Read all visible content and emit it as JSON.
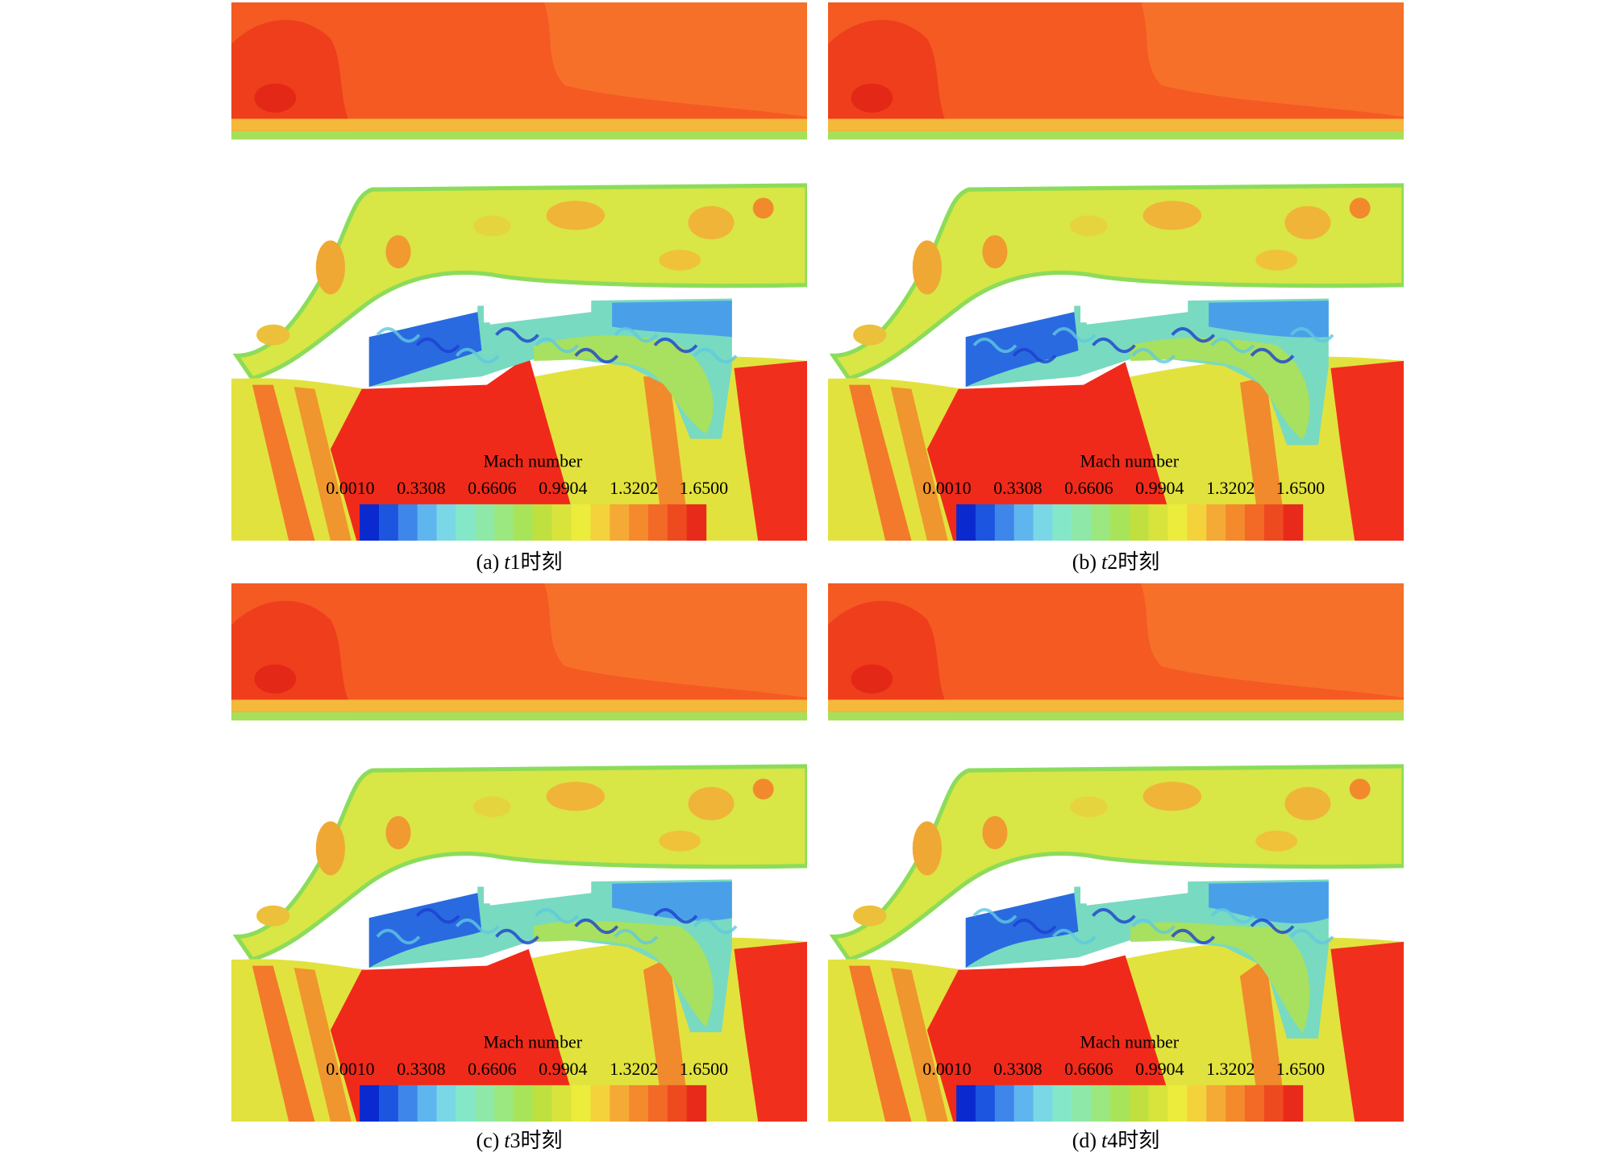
{
  "colorbar": {
    "title": "Mach number",
    "ticks": [
      "0.0010",
      "0.3308",
      "0.6606",
      "0.9904",
      "1.3202",
      "1.6500"
    ]
  },
  "panels": [
    {
      "caption": {
        "label": "(a)",
        "symbol": "t",
        "index": "1",
        "suffix": "时刻"
      }
    },
    {
      "caption": {
        "label": "(b)",
        "symbol": "t",
        "index": "2",
        "suffix": "时刻"
      }
    },
    {
      "caption": {
        "label": "(c)",
        "symbol": "t",
        "index": "3",
        "suffix": "时刻"
      }
    },
    {
      "caption": {
        "label": "(d)",
        "symbol": "t",
        "index": "4",
        "suffix": "时刻"
      }
    }
  ]
}
